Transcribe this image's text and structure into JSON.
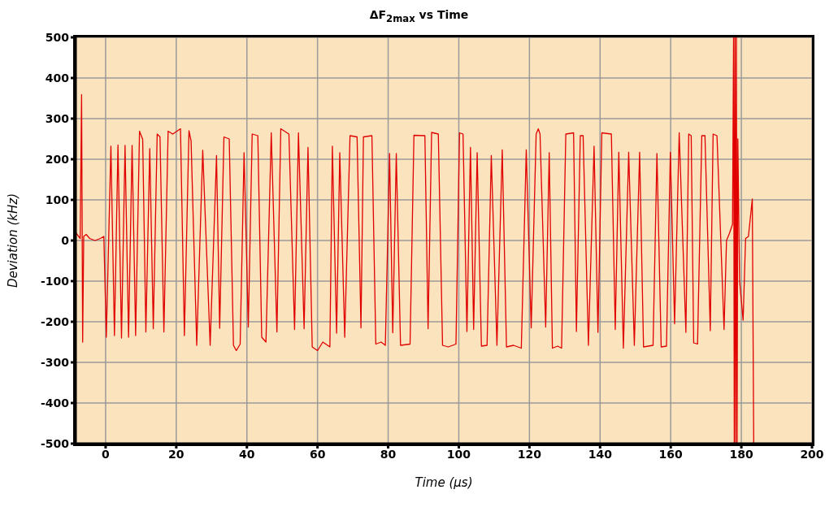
{
  "chart_data": {
    "type": "line",
    "title": "ΔF$_{2max}$ vs Time",
    "xlabel": "Time (µs)",
    "ylabel": "Deviation (kHz)",
    "xlim": [
      -8.5,
      200
    ],
    "xticks": [
      0,
      20,
      40,
      60,
      80,
      100,
      120,
      140,
      160,
      180,
      200
    ],
    "ylim": [
      -500,
      500
    ],
    "yticks": [
      -500,
      -400,
      -300,
      -200,
      -100,
      0,
      100,
      200,
      300,
      400,
      500
    ],
    "grid": true,
    "marker": "none",
    "line_style": "solid",
    "x": [
      -8.5,
      -7.2,
      -6.8,
      -6.5,
      -6.2,
      -5.5,
      -4.5,
      -3,
      -1.5,
      -0.5,
      0.2,
      1.5,
      2.5,
      3.5,
      4.5,
      5.5,
      6.5,
      7.5,
      8.5,
      9.6,
      10.5,
      11.4,
      12.5,
      13.5,
      14.6,
      15.4,
      16.5,
      17.7,
      19,
      21.2,
      22.3,
      23.6,
      24.2,
      25.8,
      27.5,
      29.6,
      31.4,
      32.3,
      33.5,
      35,
      36.2,
      37,
      38.1,
      39.2,
      40.4,
      41.5,
      43.1,
      44.2,
      45.4,
      46.9,
      48.5,
      49.6,
      51.9,
      53.5,
      54.6,
      56.2,
      57.3,
      58.5,
      60,
      61.5,
      63.5,
      64.2,
      65.4,
      66.3,
      67.7,
      69.2,
      71.2,
      72.3,
      73,
      75.4,
      76.5,
      78,
      79.2,
      80.4,
      81.3,
      82.3,
      83.5,
      86.2,
      87.3,
      90.4,
      91.3,
      92.3,
      94.2,
      95.4,
      97,
      99.2,
      100.2,
      101.2,
      102.3,
      103.3,
      104.2,
      105.2,
      106.4,
      108,
      109.2,
      110.8,
      112.3,
      113.5,
      115.5,
      117.7,
      119.1,
      120.5,
      121.9,
      122.5,
      123,
      124.6,
      125.6,
      126.5,
      128,
      129.1,
      130.3,
      132.5,
      133.3,
      134.4,
      135.2,
      136.7,
      138.3,
      139.4,
      140.5,
      143.2,
      144.3,
      145.3,
      146.6,
      148.1,
      149.7,
      151.2,
      152.3,
      155,
      156.1,
      157.3,
      158.8,
      159.9,
      161.1,
      162.4,
      164.3,
      165.1,
      165.8,
      166.5,
      167.6,
      168.8,
      169.7,
      171.2,
      172,
      173.1,
      175.1,
      175.8,
      176.6,
      177.5,
      177.8,
      178,
      178.2,
      178.4,
      178.6,
      178.8,
      179,
      179.5,
      180.5,
      181.2,
      182,
      183.1,
      183.5
    ],
    "series": [
      {
        "color": "#e00000",
        "values": [
          20,
          5,
          359,
          -250,
          10,
          15,
          5,
          0,
          5,
          10,
          -238,
          232,
          -234,
          235,
          -240,
          234,
          -238,
          234,
          -234,
          269,
          249,
          -225,
          226,
          -217,
          262,
          255,
          -225,
          269,
          262,
          275,
          -234,
          270,
          245,
          -258,
          222,
          -258,
          209,
          -216,
          255,
          250,
          -258,
          -271,
          -255,
          216,
          -213,
          262,
          258,
          -238,
          -250,
          265,
          -225,
          275,
          262,
          -219,
          265,
          -217,
          229,
          -262,
          -271,
          -250,
          -262,
          232,
          -228,
          216,
          -238,
          258,
          255,
          -215,
          255,
          258,
          -255,
          -250,
          -258,
          214,
          -227,
          214,
          -258,
          -255,
          259,
          258,
          -217,
          266,
          262,
          -258,
          -262,
          -255,
          265,
          262,
          -224,
          229,
          -219,
          216,
          -260,
          -258,
          209,
          -258,
          223,
          -262,
          -258,
          -265,
          223,
          -215,
          262,
          275,
          262,
          -213,
          216,
          -265,
          -260,
          -265,
          262,
          265,
          -224,
          258,
          258,
          -258,
          232,
          -226,
          265,
          262,
          -219,
          217,
          -265,
          217,
          -258,
          217,
          -262,
          -258,
          214,
          -262,
          -260,
          217,
          -205,
          265,
          -226,
          262,
          258,
          -252,
          -255,
          258,
          258,
          -222,
          262,
          258,
          -219,
          0,
          17,
          40,
          500,
          -500,
          500,
          -500,
          500,
          -500,
          250,
          -100,
          -196,
          5,
          10,
          102,
          -500
        ]
      }
    ]
  }
}
